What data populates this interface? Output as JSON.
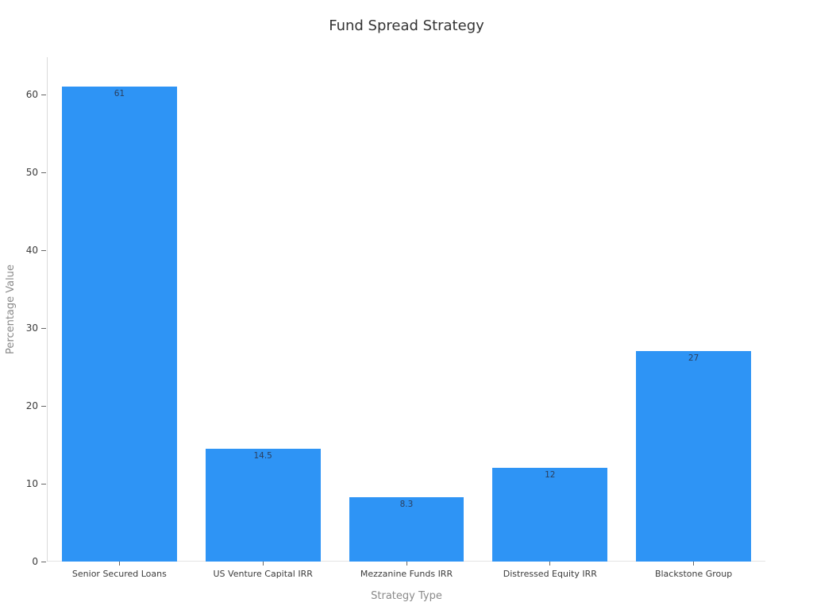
{
  "chart_data": {
    "type": "bar",
    "title": "Fund Spread Strategy",
    "xlabel": "Strategy Type",
    "ylabel": "Percentage Value",
    "categories": [
      "Senior Secured Loans",
      "US Venture Capital IRR",
      "Mezzanine Funds IRR",
      "Distressed Equity IRR",
      "Blackstone Group"
    ],
    "values": [
      61,
      14.5,
      8.3,
      12,
      27
    ],
    "value_labels": [
      "61",
      "14.5",
      "8.3",
      "12",
      "27"
    ],
    "yticks": [
      0,
      10,
      20,
      30,
      40,
      50,
      60
    ],
    "ytick_labels": [
      "0",
      "10",
      "20",
      "30",
      "40",
      "50",
      "60"
    ],
    "ylim": [
      0,
      64.8
    ],
    "grid": false,
    "legend": false,
    "bar_width_fraction": 0.8
  },
  "colors": {
    "bar": "#2E94F5",
    "axis_line": "#D9D9D9",
    "zero_line": "#E4E4E4",
    "tick_mark": "#666666",
    "tick_label": "#3B3B3B",
    "axis_title": "#8A8A8A",
    "title": "#333333",
    "bar_value_label": "#2A3F5F"
  }
}
